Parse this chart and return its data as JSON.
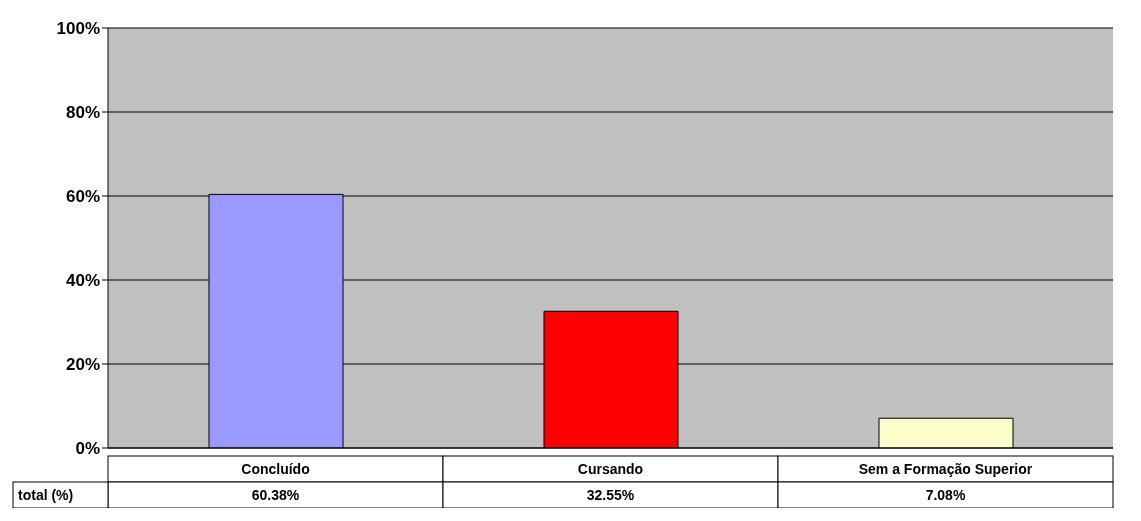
{
  "chart_data": {
    "type": "bar",
    "categories": [
      "Concluído",
      "Cursando",
      "Sem a Formação Superior"
    ],
    "series": [
      {
        "name": "total (%)",
        "colors": [
          "#9999ff",
          "#ff0000",
          "#ffffcc"
        ],
        "values": [
          60.38,
          32.55,
          7.08
        ],
        "value_labels": [
          "60.38%",
          "32.55%",
          "7.08%"
        ]
      }
    ],
    "ylim": [
      0,
      100
    ],
    "yticks": [
      {
        "value": 0,
        "label": "0%"
      },
      {
        "value": 20,
        "label": "20%"
      },
      {
        "value": 40,
        "label": "40%"
      },
      {
        "value": 60,
        "label": "60%"
      },
      {
        "value": 80,
        "label": "80%"
      },
      {
        "value": 100,
        "label": "100%"
      }
    ],
    "grid": "y"
  }
}
